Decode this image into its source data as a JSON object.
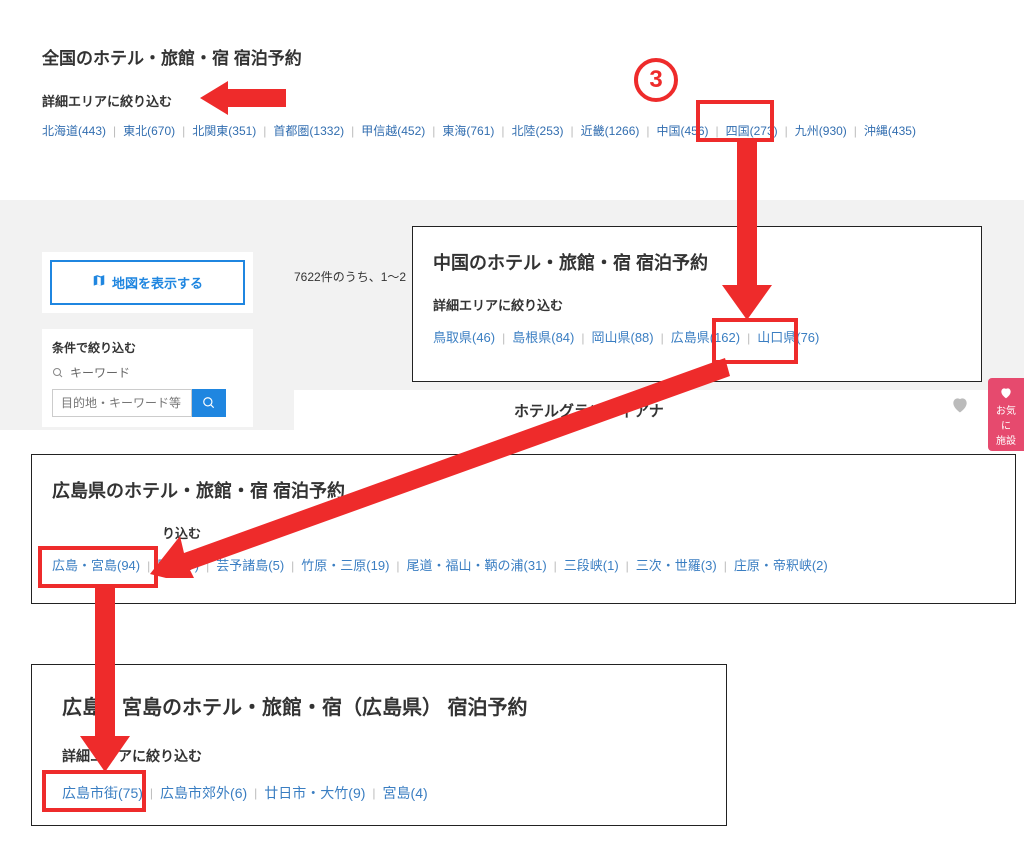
{
  "colors": {
    "link": "#326eb0",
    "link2": "#3a7ec2",
    "separator": "#bbbbbb",
    "accent_blue": "#1f86e0",
    "annotation_red": "#ee2b2b",
    "gray_bg": "#f2f2f2",
    "fav_pink": "#e64a6e",
    "text": "#333333",
    "heart_gray": "#bbbbbb"
  },
  "top": {
    "title": "全国のホテル・旅館・宿 宿泊予約",
    "subtitle": "詳細エリアに絞り込む",
    "regions": [
      {
        "label": "北海道",
        "count": 443
      },
      {
        "label": "東北",
        "count": 670
      },
      {
        "label": "北関東",
        "count": 351
      },
      {
        "label": "首都圏",
        "count": 1332
      },
      {
        "label": "甲信越",
        "count": 452
      },
      {
        "label": "東海",
        "count": 761
      },
      {
        "label": "北陸",
        "count": 253
      },
      {
        "label": "近畿",
        "count": 1266
      },
      {
        "label": "中国",
        "count": 456
      },
      {
        "label": "四国",
        "count": 273
      },
      {
        "label": "九州",
        "count": 930
      },
      {
        "label": "沖縄",
        "count": 435
      }
    ]
  },
  "sidebar": {
    "map_button": "地図を表示する",
    "filter_title": "条件で絞り込む",
    "keyword_label": "キーワード",
    "keyword_placeholder": "目的地・キーワード等"
  },
  "results": {
    "count_text": "7622件のうち、1～2",
    "hotel_name": "ホテルグランヴィアナ"
  },
  "favorite_tab": {
    "line1": "お気に",
    "line2": "施設"
  },
  "panel_chugoku": {
    "title": "中国のホテル・旅館・宿 宿泊予約",
    "subtitle": "詳細エリアに絞り込む",
    "items": [
      {
        "label": "鳥取県",
        "count": 46
      },
      {
        "label": "島根県",
        "count": 84
      },
      {
        "label": "岡山県",
        "count": 88
      },
      {
        "label": "広島県",
        "count": 162
      },
      {
        "label": "山口県",
        "count": 76
      }
    ]
  },
  "panel_hiroshima": {
    "title": "広島県のホテル・旅館・宿 宿泊予約",
    "subtitle_partial": "り込む",
    "items": [
      {
        "label": "広島・宮島",
        "count": 94
      },
      {
        "label": "田島",
        "count": 7,
        "prefix_hidden": true
      },
      {
        "label": "芸予諸島",
        "count": 5
      },
      {
        "label": "竹原・三原",
        "count": 19
      },
      {
        "label": "尾道・福山・鞆の浦",
        "count": 31
      },
      {
        "label": "三段峡",
        "count": 1
      },
      {
        "label": "三次・世羅",
        "count": 3
      },
      {
        "label": "庄原・帝釈峡",
        "count": 2
      }
    ]
  },
  "panel_miyajima": {
    "title": "広島・宮島のホテル・旅館・宿（広島県） 宿泊予約",
    "subtitle": "詳細エリアに絞り込む",
    "items": [
      {
        "label": "広島市街",
        "count": 75
      },
      {
        "label": "広島市郊外",
        "count": 6
      },
      {
        "label": "廿日市・大竹",
        "count": 9
      },
      {
        "label": "宮島",
        "count": 4
      }
    ]
  },
  "annotations": {
    "step_number": "3"
  }
}
